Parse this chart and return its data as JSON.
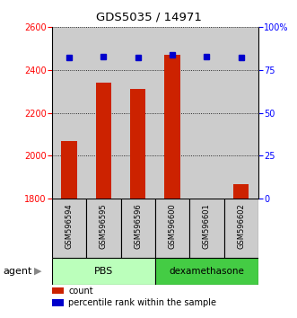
{
  "title": "GDS5035 / 14971",
  "samples": [
    "GSM596594",
    "GSM596595",
    "GSM596596",
    "GSM596600",
    "GSM596601",
    "GSM596602"
  ],
  "counts": [
    2070,
    2340,
    2310,
    2470,
    1802,
    1870
  ],
  "percentiles": [
    82,
    83,
    82,
    84,
    83,
    82
  ],
  "ylim_left": [
    1800,
    2600
  ],
  "ylim_right": [
    0,
    100
  ],
  "yticks_left": [
    1800,
    2000,
    2200,
    2400,
    2600
  ],
  "yticks_right": [
    0,
    25,
    50,
    75,
    100
  ],
  "yticklabels_right": [
    "0",
    "25",
    "50",
    "75",
    "100%"
  ],
  "bar_color": "#cc2200",
  "dot_color": "#0000cc",
  "bar_width": 0.45,
  "pbs_color": "#bbffbb",
  "dex_color": "#44cc44",
  "agent_label": "agent",
  "legend_count_label": "count",
  "legend_pct_label": "percentile rank within the sample",
  "grid_color": "#888888",
  "sample_bg_color": "#cccccc",
  "white": "#ffffff"
}
